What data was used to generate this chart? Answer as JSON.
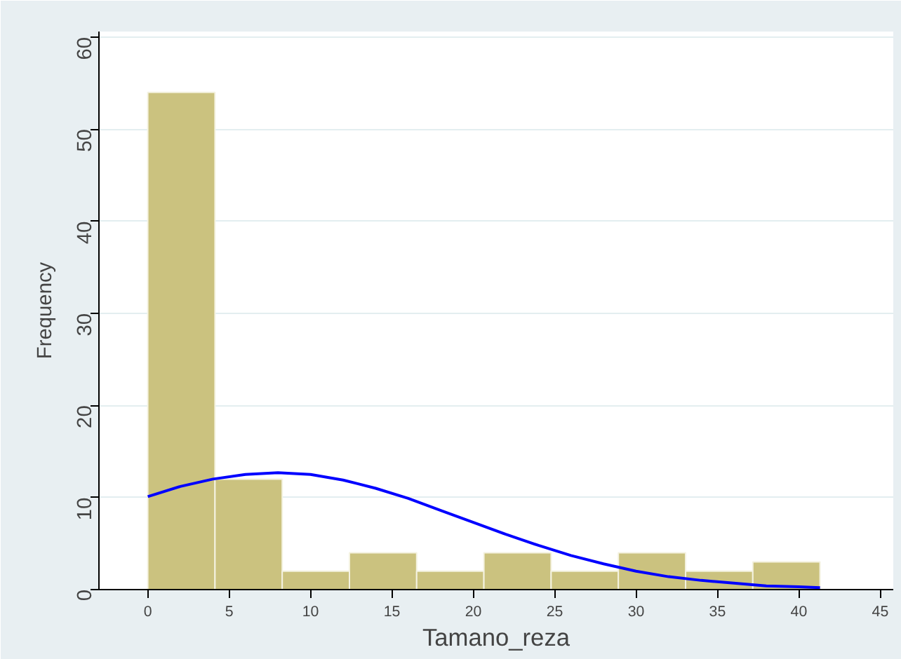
{
  "chart_data": {
    "type": "histogram",
    "xlabel": "Tamano_reza",
    "ylabel": "Frequency",
    "bins": [
      0,
      4.13,
      8.26,
      12.39,
      16.52,
      20.65,
      24.78,
      28.91,
      33.04,
      37.17,
      41.3
    ],
    "values": [
      54,
      12,
      2,
      4,
      2,
      4,
      2,
      4,
      2,
      3
    ],
    "color": "#cbc27f",
    "series": [
      {
        "type": "line",
        "color": "#0000ff",
        "x": [
          0,
          2,
          4,
          6,
          8,
          10,
          12,
          14,
          16,
          18,
          20,
          22,
          24,
          26,
          28,
          30,
          32,
          34,
          36,
          38,
          40,
          41.3
        ],
        "values": [
          10.1,
          11.2,
          12.0,
          12.5,
          12.7,
          12.5,
          11.9,
          11.0,
          9.9,
          8.6,
          7.3,
          6.0,
          4.8,
          3.7,
          2.8,
          2.0,
          1.4,
          1.0,
          0.7,
          0.4,
          0.3,
          0.2
        ]
      }
    ],
    "xlim": [
      -3,
      45.8
    ],
    "ylim": [
      0,
      60.6
    ],
    "xticks": [
      0,
      5,
      10,
      15,
      20,
      25,
      30,
      35,
      40,
      45
    ],
    "yticks": [
      0,
      10,
      20,
      30,
      40,
      50,
      60
    ],
    "grid": "y"
  }
}
